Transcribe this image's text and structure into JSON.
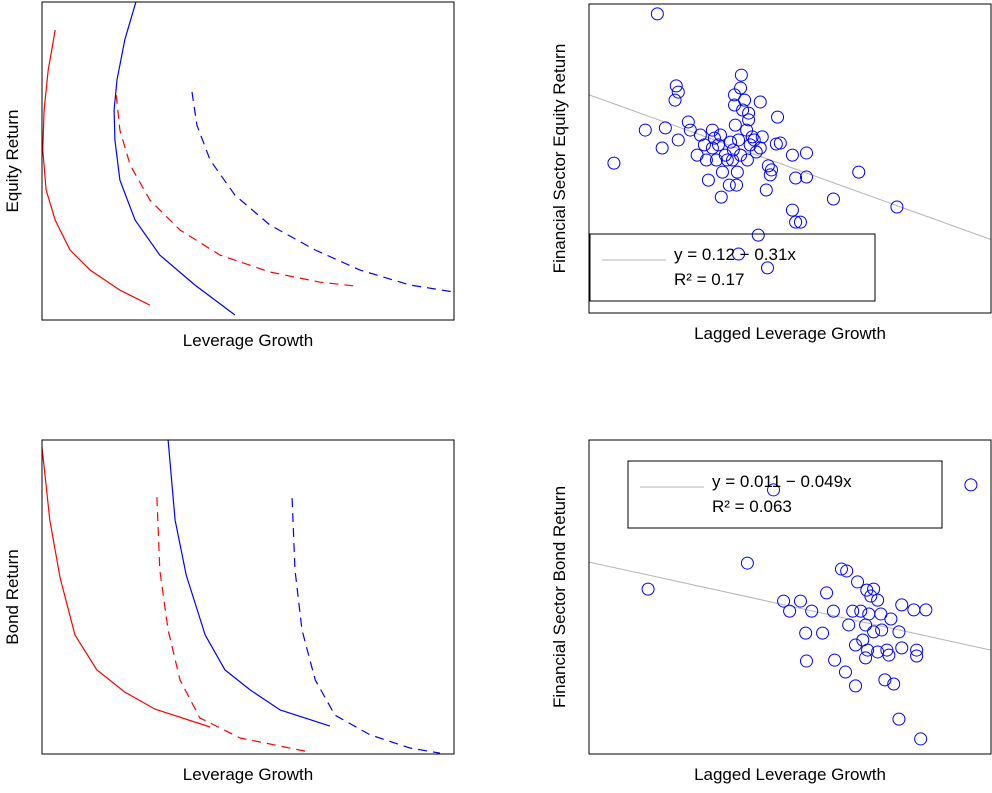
{
  "chart_data": [
    {
      "type": "line",
      "xlabel": "Leverage Growth",
      "ylabel": "Equity Return",
      "xlim": [
        0,
        100
      ],
      "ylim": [
        0,
        100
      ],
      "series": [
        {
          "color": "#ff0000",
          "dashed": false,
          "x": [
            3.2,
            1.5,
            0.5,
            0.2,
            1.0,
            3.2,
            6.8,
            11.7,
            18.9,
            26.2
          ],
          "values": [
            91.2,
            78.6,
            66.0,
            53.5,
            40.9,
            31.4,
            22.0,
            15.7,
            9.4,
            4.7
          ]
        },
        {
          "color": "#0000ff",
          "dashed": false,
          "x": [
            22.8,
            20.1,
            18.2,
            17.5,
            17.7,
            18.9,
            22.6,
            28.6,
            37.1,
            46.8
          ],
          "values": [
            100,
            88.1,
            75.5,
            66.0,
            56.6,
            44.0,
            31.4,
            20.4,
            11.0,
            1.6
          ]
        },
        {
          "color": "#ff0000",
          "dashed": true,
          "x": [
            18.0,
            18.9,
            21.4,
            26.2,
            33.5,
            43.2,
            55.3,
            67.5,
            76.0
          ],
          "values": [
            70.8,
            59.7,
            48.7,
            37.7,
            28.3,
            20.4,
            15.1,
            11.9,
            10.7
          ]
        },
        {
          "color": "#0000ff",
          "dashed": true,
          "x": [
            36.4,
            37.6,
            40.8,
            46.8,
            55.3,
            66.3,
            77.2,
            89.3,
            100
          ],
          "values": [
            71.7,
            61.3,
            50.3,
            39.3,
            29.9,
            22.0,
            15.7,
            11.0,
            8.8
          ]
        }
      ]
    },
    {
      "type": "scatter",
      "xlabel": "Lagged Leverage Growth",
      "ylabel": "Financial Sector Equity Return",
      "xlim": [
        0,
        100
      ],
      "ylim": [
        0,
        100
      ],
      "color": "#0000ff",
      "legend": "lower left",
      "x": [
        17.0,
        6.2,
        14.0,
        18.2,
        21.7,
        22.2,
        21.4,
        19.0,
        22.2,
        24.7,
        25.2,
        26.9,
        27.7,
        28.7,
        29.2,
        29.7,
        30.7,
        30.7,
        31.2,
        31.7,
        32.2,
        32.7,
        32.9,
        33.2,
        33.9,
        34.4,
        34.9,
        35.2,
        35.7,
        35.9,
        36.2,
        36.2,
        36.4,
        36.7,
        36.9,
        37.2,
        37.7,
        37.7,
        37.9,
        38.2,
        38.7,
        39.2,
        39.4,
        39.7,
        39.7,
        40.1,
        40.6,
        41.1,
        41.6,
        42.6,
        42.6,
        43.1,
        44.1,
        44.6,
        45.1,
        45.4,
        46.6,
        46.9,
        47.6,
        50.6,
        51.4,
        50.6,
        51.4,
        52.6,
        54.1,
        54.1,
        42.1,
        44.4,
        37.2,
        60.8,
        67.1,
        76.6
      ],
      "values": [
        96.8,
        48.5,
        59.2,
        53.4,
        73.5,
        71.5,
        68.9,
        59.9,
        56.0,
        61.8,
        59.2,
        51.1,
        57.6,
        54.4,
        49.5,
        43.0,
        59.2,
        53.4,
        56.6,
        49.5,
        54.4,
        57.6,
        37.5,
        45.6,
        51.1,
        49.5,
        41.4,
        55.3,
        49.5,
        52.8,
        70.6,
        67.3,
        60.8,
        41.4,
        45.6,
        56.0,
        72.8,
        51.1,
        77.0,
        65.7,
        68.9,
        59.2,
        49.5,
        64.7,
        62.5,
        54.4,
        57.0,
        56.0,
        52.1,
        53.4,
        68.3,
        57.0,
        39.8,
        47.6,
        44.7,
        46.3,
        54.7,
        63.4,
        55.0,
        51.1,
        43.7,
        33.3,
        29.4,
        29.4,
        51.8,
        44.0,
        25.2,
        14.6,
        19.1,
        36.9,
        45.6,
        34.3
      ],
      "fit": {
        "color": "#b4b4b4",
        "x": [
          0,
          100
        ],
        "values": [
          70.6,
          23.8
        ]
      },
      "annotations": [
        "y = 0.12 − 0.31x",
        "R² = 0.17"
      ]
    },
    {
      "type": "line",
      "xlabel": "Leverage Growth",
      "ylabel": "Bond Return",
      "xlim": [
        0,
        100
      ],
      "ylim": [
        0,
        100
      ],
      "series": [
        {
          "color": "#ff0000",
          "dashed": false,
          "x": [
            0,
            1.9,
            4.4,
            8.0,
            13.3,
            20.1,
            27.4,
            40.8
          ],
          "values": [
            97.8,
            74.5,
            56.1,
            37.9,
            26.8,
            19.7,
            14.3,
            8.6
          ]
        },
        {
          "color": "#0000ff",
          "dashed": false,
          "x": [
            30.6,
            32.3,
            35.0,
            39.6,
            44.4,
            50.5,
            57.8,
            69.9
          ],
          "values": [
            100,
            74.5,
            57.0,
            37.9,
            26.8,
            20.4,
            14.0,
            8.9
          ]
        },
        {
          "color": "#ff0000",
          "dashed": true,
          "x": [
            27.9,
            28.6,
            30.6,
            33.5,
            38.3,
            48.1,
            65.0
          ],
          "values": [
            81.8,
            58.6,
            39.5,
            23.6,
            11.5,
            5.1,
            0.6
          ]
        },
        {
          "color": "#0000ff",
          "dashed": true,
          "x": [
            60.7,
            61.4,
            63.1,
            66.3,
            71.1,
            79.6,
            89.3,
            96.6
          ],
          "values": [
            81.5,
            58.6,
            39.5,
            23.6,
            12.4,
            6.1,
            1.9,
            0.3
          ]
        }
      ]
    },
    {
      "type": "scatter",
      "xlabel": "Lagged Leverage Growth",
      "ylabel": "Financial Sector Bond Return",
      "xlim": [
        0,
        100
      ],
      "ylim": [
        0,
        100
      ],
      "color": "#0000ff",
      "legend": "upper left",
      "x": [
        95.0,
        45.9,
        39.4,
        14.7,
        48.4,
        52.6,
        49.9,
        55.4,
        59.1,
        62.8,
        64.1,
        66.8,
        69.1,
        70.1,
        70.8,
        71.8,
        60.8,
        65.6,
        67.6,
        69.6,
        72.6,
        77.8,
        80.8,
        83.8,
        53.9,
        58.1,
        64.6,
        68.8,
        70.8,
        72.8,
        75.1,
        77.1,
        61.1,
        54.1,
        66.3,
        68.1,
        69.3,
        71.8,
        74.1,
        74.6,
        77.8,
        81.5,
        81.5,
        63.8,
        66.3,
        68.8,
        73.6,
        75.8,
        77.1,
        82.5
      ],
      "values": [
        85.7,
        84.1,
        60.8,
        52.5,
        48.7,
        48.7,
        45.5,
        45.5,
        51.3,
        58.9,
        58.3,
        54.8,
        52.2,
        50.3,
        52.5,
        49.0,
        45.5,
        45.5,
        45.5,
        44.6,
        44.6,
        47.5,
        45.9,
        45.9,
        38.5,
        38.5,
        41.1,
        41.1,
        38.9,
        39.5,
        43.0,
        38.9,
        29.9,
        29.6,
        34.7,
        36.3,
        33.1,
        32.5,
        33.1,
        31.5,
        33.8,
        33.1,
        31.2,
        26.1,
        21.7,
        30.6,
        23.6,
        22.3,
        11.1,
        4.8
      ],
      "fit": {
        "color": "#b4b4b4",
        "x": [
          0,
          100
        ],
        "values": [
          61.1,
          33.1
        ]
      },
      "annotations": [
        "y = 0.011 − 0.049x",
        "R² = 0.063"
      ]
    }
  ]
}
